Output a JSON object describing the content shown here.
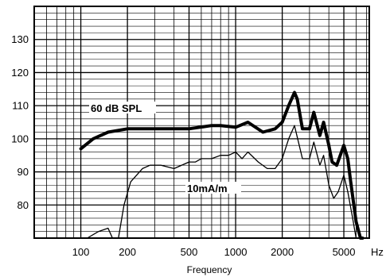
{
  "chart_data": {
    "type": "line",
    "title": "",
    "xlabel": "Frequency",
    "ylabel": "",
    "x_unit": "Hz",
    "x_scale": "log",
    "xlim": [
      50,
      7300
    ],
    "ylim": [
      70,
      140
    ],
    "grid": true,
    "x_ticks": [
      100,
      200,
      500,
      1000,
      2000,
      5000
    ],
    "x_tick_labels": [
      "100",
      "200",
      "500",
      "1000",
      "2000",
      "5000"
    ],
    "y_ticks": [
      80,
      90,
      100,
      110,
      120,
      130
    ],
    "y_tick_labels": [
      "80",
      "90",
      "100",
      "110",
      "120",
      "130"
    ],
    "series": [
      {
        "name": "60 dB SPL",
        "line": "thick",
        "x": [
          100,
          120,
          150,
          200,
          300,
          500,
          700,
          800,
          1000,
          1200,
          1500,
          1800,
          2000,
          2200,
          2400,
          2500,
          2700,
          3000,
          3200,
          3500,
          3700,
          4000,
          4200,
          4500,
          5000,
          5300,
          5500,
          6000,
          6400,
          6600
        ],
        "values": [
          97,
          100,
          102,
          103,
          103,
          103,
          104,
          104,
          103.5,
          105,
          102,
          103,
          105,
          110,
          114,
          112,
          103,
          103,
          108,
          101,
          105,
          98,
          93,
          92,
          98,
          94,
          88,
          75,
          70,
          70
        ]
      },
      {
        "name": "10mA/m",
        "line": "thin",
        "x": [
          110,
          130,
          150,
          160,
          165,
          170,
          175,
          190,
          210,
          250,
          280,
          330,
          400,
          500,
          550,
          600,
          700,
          800,
          900,
          1000,
          1100,
          1200,
          1400,
          1600,
          1800,
          2000,
          2200,
          2400,
          2700,
          3000,
          3200,
          3500,
          3700,
          4000,
          4300,
          4600,
          5000,
          5300,
          5700,
          6000,
          6500,
          7000
        ],
        "values": [
          70,
          72,
          73,
          70,
          70,
          70,
          70,
          80,
          87,
          91,
          92,
          92,
          91,
          93,
          93,
          94,
          94,
          95,
          95,
          96,
          94,
          96,
          93,
          91,
          91,
          94,
          100,
          104,
          94,
          94,
          99,
          92,
          95,
          86,
          82,
          84,
          89,
          84,
          76,
          70,
          70,
          70
        ]
      }
    ]
  }
}
